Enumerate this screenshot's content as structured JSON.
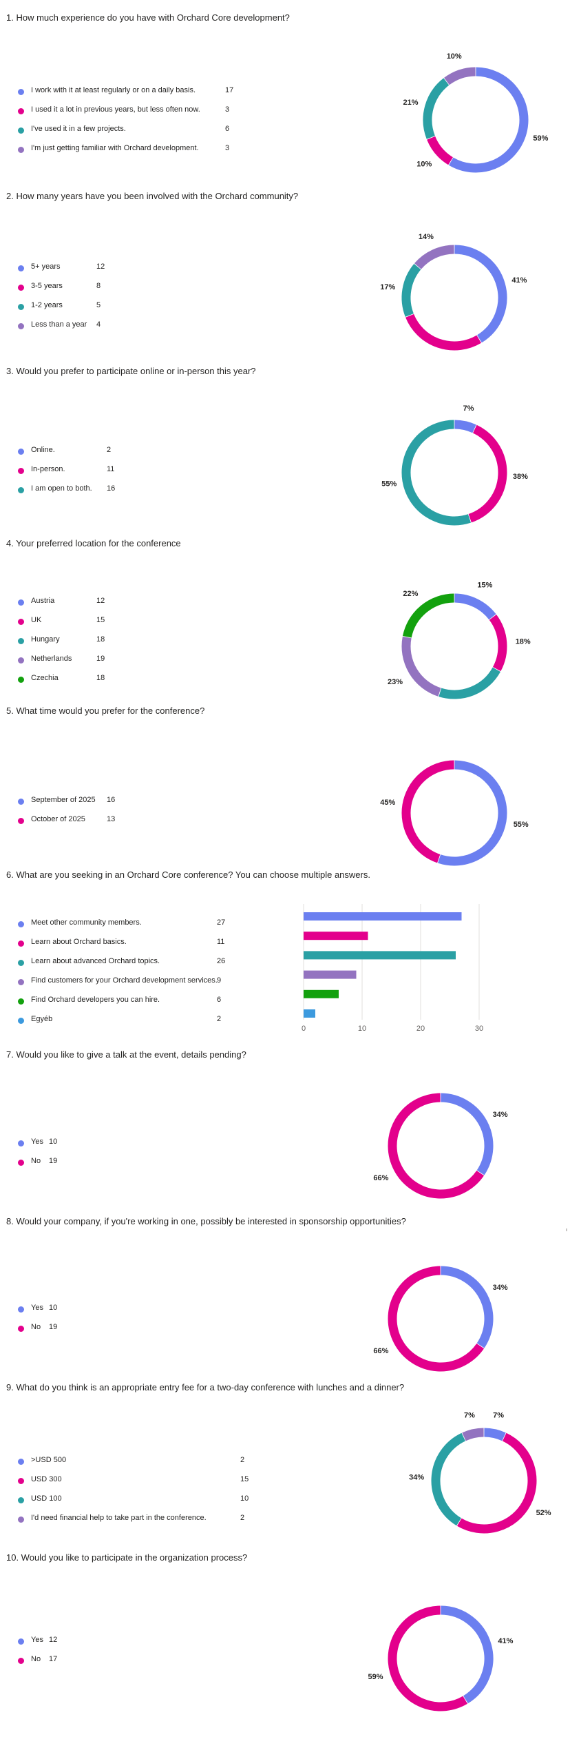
{
  "colors": [
    "#6b7ff0",
    "#e3008c",
    "#2aa0a4",
    "#9373c0",
    "#13a10e",
    "#3c9ade"
  ],
  "chart_data": [
    {
      "type": "pie",
      "title": "1. How much experience do you have with Orchard Core development?",
      "categories": [
        "I work with it at least regularly or on a daily basis.",
        "I used it a lot in previous years, but less often now.",
        "I've used it in a few projects.",
        "I'm just getting familiar with Orchard development."
      ],
      "values": [
        17,
        3,
        6,
        3
      ],
      "data_labels": [
        "59%",
        "10%",
        "21%",
        "10%"
      ]
    },
    {
      "type": "pie",
      "title": "2. How many years have you been involved with the Orchard community?",
      "categories": [
        "5+ years",
        "3-5 years",
        "1-2 years",
        "Less than a year"
      ],
      "values": [
        12,
        8,
        5,
        4
      ],
      "data_labels": [
        "41%",
        "",
        "17%",
        "14%"
      ]
    },
    {
      "type": "pie",
      "title": "3. Would you prefer to participate online or in-person this year?",
      "categories": [
        "Online.",
        "In-person.",
        "I am open to both."
      ],
      "values": [
        2,
        11,
        16
      ],
      "data_labels": [
        "7%",
        "38%",
        "55%"
      ]
    },
    {
      "type": "pie",
      "title": "4. Your preferred location for the conference",
      "categories": [
        "Austria",
        "UK",
        "Hungary",
        "Netherlands",
        "Czechia"
      ],
      "values": [
        12,
        15,
        18,
        19,
        18
      ],
      "data_labels": [
        "15%",
        "18%",
        "",
        "23%",
        "22%"
      ]
    },
    {
      "type": "pie",
      "title": "5. What time would you prefer for the conference?",
      "categories": [
        "September of 2025",
        "October of 2025"
      ],
      "values": [
        16,
        13
      ],
      "data_labels": [
        "55%",
        "45%"
      ]
    },
    {
      "type": "bar",
      "title": "6. What are you seeking in an Orchard Core conference? You can choose multiple answers.",
      "categories": [
        "Meet other community members.",
        "Learn about Orchard basics.",
        "Learn about advanced Orchard topics.",
        "Find customers for your Orchard development services.",
        "Find Orchard developers you can hire.",
        "Egyéb"
      ],
      "values": [
        27,
        11,
        26,
        9,
        6,
        2
      ],
      "xlim": [
        0,
        30
      ],
      "xticks": [
        "0",
        "10",
        "20",
        "30"
      ]
    },
    {
      "type": "pie",
      "title": "7. Would you like to give a talk at the event, details pending?",
      "categories": [
        "Yes",
        "No"
      ],
      "values": [
        10,
        19
      ],
      "data_labels": [
        "34%",
        "66%"
      ]
    },
    {
      "type": "pie",
      "title": "8. Would your company, if you're working in one, possibly be interested in sponsorship opportunities?",
      "categories": [
        "Yes",
        "No"
      ],
      "values": [
        10,
        19
      ],
      "data_labels": [
        "34%",
        "66%"
      ]
    },
    {
      "type": "pie",
      "title": "9. What do you think is an appropriate entry fee for a two-day conference with lunches and a dinner?",
      "categories": [
        ">USD 500",
        "USD 300",
        "USD 100",
        "I'd need financial help to take part in the conference."
      ],
      "values": [
        2,
        15,
        10,
        2
      ],
      "data_labels": [
        "7%",
        "52%",
        "34%",
        "7%"
      ]
    },
    {
      "type": "pie",
      "title": "10. Would you like to participate in the organization process?",
      "categories": [
        "Yes",
        "No"
      ],
      "values": [
        12,
        17
      ],
      "data_labels": [
        "41%",
        "59%"
      ]
    }
  ]
}
